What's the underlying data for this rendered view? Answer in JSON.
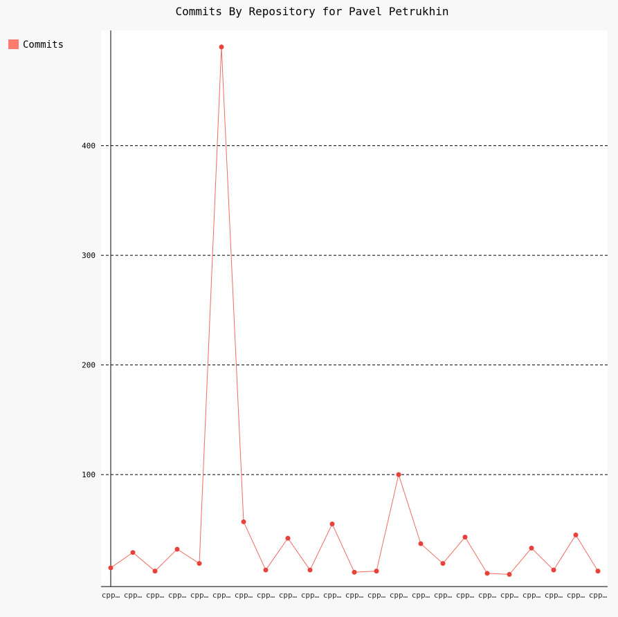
{
  "chart_data": {
    "type": "line",
    "title": "Commits By Repository for Pavel Petrukhin",
    "legend": {
      "placement": "top-left",
      "entries": [
        "Commits"
      ]
    },
    "series_color": "#f26b5e",
    "point_color": "#e8403a",
    "legend_color": "#ff7b6f",
    "categories": [
      "cpp…",
      "cpp…",
      "cpp…",
      "cpp…",
      "cpp…",
      "cpp…",
      "cpp…",
      "cpp…",
      "cpp…",
      "cpp…",
      "cpp…",
      "cpp…",
      "cpp…",
      "cpp…",
      "cpp…",
      "cpp…",
      "cpp…",
      "cpp…",
      "cpp…",
      "cpp…",
      "cpp…",
      "cpp…",
      "cpp…"
    ],
    "series": [
      {
        "name": "Commits",
        "values": [
          15,
          29,
          12,
          32,
          19,
          490,
          57,
          13,
          42,
          13,
          55,
          11,
          12,
          100,
          37,
          19,
          43,
          10,
          9,
          33,
          13,
          45,
          12
        ]
      }
    ],
    "yticks": [
      100,
      200,
      300,
      400
    ],
    "ylim": [
      8,
      495
    ],
    "grid": true,
    "xlabel": "",
    "ylabel": ""
  }
}
